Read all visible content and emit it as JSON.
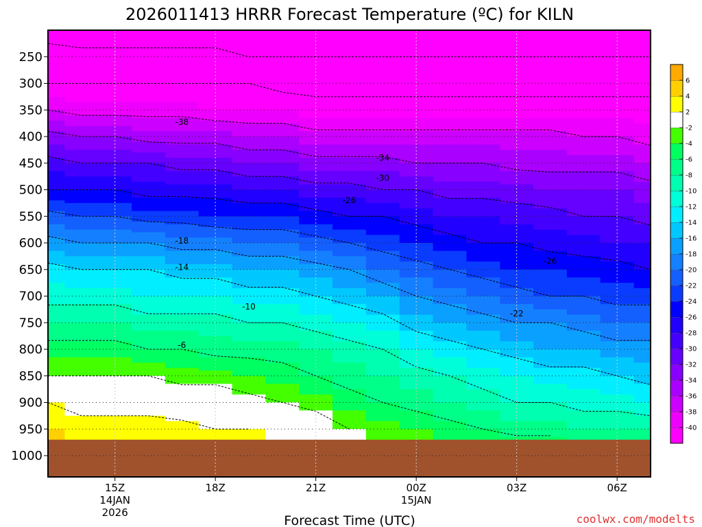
{
  "chart_data": {
    "type": "heatmap",
    "title": "2026011413 HRRR Forecast Temperature (ºC) for KILN",
    "xlabel": "Forecast Time (UTC)",
    "ylabel": "",
    "x_ticks": [
      {
        "hour": 15,
        "labels": [
          "15Z",
          "14JAN",
          "2026"
        ]
      },
      {
        "hour": 18,
        "labels": [
          "18Z"
        ]
      },
      {
        "hour": 21,
        "labels": [
          "21Z"
        ]
      },
      {
        "hour": 24,
        "labels": [
          "00Z",
          "15JAN"
        ]
      },
      {
        "hour": 27,
        "labels": [
          "03Z"
        ]
      },
      {
        "hour": 30,
        "labels": [
          "06Z"
        ]
      }
    ],
    "x_hours": [
      13,
      14,
      15,
      16,
      17,
      18,
      19,
      20,
      21,
      22,
      23,
      24,
      25,
      26,
      27,
      28,
      29,
      30,
      31
    ],
    "xlim": [
      13,
      31
    ],
    "pressure_ticks": [
      250,
      300,
      350,
      400,
      450,
      500,
      550,
      600,
      650,
      700,
      750,
      800,
      850,
      900,
      950,
      1000
    ],
    "ylim_hpa": [
      200,
      1040
    ],
    "ground_level_hpa": 970,
    "temperature_profiles": [
      {
        "p": [
          200,
          250,
          300,
          350,
          400,
          450,
          500,
          550,
          600,
          650,
          700,
          750,
          800,
          850,
          900,
          950,
          975
        ],
        "t": [
          -48,
          -44,
          -42,
          -38,
          -33,
          -29,
          -26,
          -21,
          -17,
          -13,
          -11,
          -8,
          -5,
          -2,
          2,
          4,
          5
        ]
      },
      {
        "p": [
          200,
          250,
          300,
          350,
          400,
          450,
          500,
          550,
          600,
          650,
          700,
          750,
          800,
          850,
          900,
          950,
          975
        ],
        "t": [
          -48,
          -45,
          -42,
          -39,
          -34,
          -30,
          -26,
          -22,
          -18,
          -14,
          -11,
          -8,
          -5,
          -2,
          1,
          3,
          4
        ]
      },
      {
        "p": [
          200,
          250,
          300,
          350,
          400,
          450,
          500,
          550,
          600,
          650,
          700,
          750,
          800,
          850,
          900,
          950,
          975
        ],
        "t": [
          -48,
          -45,
          -42,
          -39,
          -34,
          -30,
          -26,
          -22,
          -18,
          -14,
          -11,
          -8,
          -5,
          -2,
          1,
          3,
          4
        ]
      },
      {
        "p": [
          200,
          250,
          300,
          350,
          400,
          450,
          500,
          550,
          600,
          650,
          700,
          750,
          800,
          850,
          900,
          950,
          975
        ],
        "t": [
          -48,
          -45,
          -42,
          -39,
          -35,
          -30,
          -27,
          -23,
          -18,
          -14,
          -12,
          -9,
          -6,
          -2,
          1,
          3,
          4
        ]
      },
      {
        "p": [
          200,
          250,
          300,
          350,
          400,
          450,
          500,
          550,
          600,
          650,
          700,
          750,
          800,
          850,
          900,
          950,
          975
        ],
        "t": [
          -48,
          -45,
          -42,
          -39,
          -35,
          -31,
          -27,
          -23,
          -19,
          -15,
          -12,
          -9,
          -6,
          -3,
          0,
          3,
          4
        ]
      },
      {
        "p": [
          200,
          250,
          300,
          350,
          400,
          450,
          500,
          550,
          600,
          650,
          700,
          750,
          800,
          850,
          900,
          950,
          975
        ],
        "t": [
          -48,
          -45,
          -42,
          -40,
          -35,
          -31,
          -27,
          -24,
          -19,
          -15,
          -12,
          -9,
          -7,
          -3,
          0,
          2,
          3
        ]
      },
      {
        "p": [
          200,
          250,
          300,
          350,
          400,
          450,
          500,
          550,
          600,
          650,
          700,
          750,
          800,
          850,
          900,
          950,
          975
        ],
        "t": [
          -48,
          -46,
          -42,
          -40,
          -36,
          -32,
          -28,
          -24,
          -20,
          -16,
          -13,
          -10,
          -7,
          -4,
          -1,
          2,
          3
        ]
      },
      {
        "p": [
          200,
          250,
          300,
          350,
          400,
          450,
          500,
          550,
          600,
          650,
          700,
          750,
          800,
          850,
          900,
          950,
          975
        ],
        "t": [
          -48,
          -46,
          -43,
          -40,
          -36,
          -32,
          -28,
          -24,
          -20,
          -16,
          -13,
          -10,
          -7,
          -5,
          -2,
          1,
          2
        ]
      },
      {
        "p": [
          200,
          250,
          300,
          350,
          400,
          450,
          500,
          550,
          600,
          650,
          700,
          750,
          800,
          850,
          900,
          950,
          975
        ],
        "t": [
          -48,
          -46,
          -43,
          -41,
          -37,
          -33,
          -29,
          -25,
          -21,
          -17,
          -14,
          -11,
          -8,
          -6,
          -3,
          0,
          1
        ]
      },
      {
        "p": [
          200,
          250,
          300,
          350,
          400,
          450,
          500,
          550,
          600,
          650,
          700,
          750,
          800,
          850,
          900,
          950,
          975
        ],
        "t": [
          -48,
          -46,
          -43,
          -41,
          -37,
          -33,
          -29,
          -26,
          -22,
          -18,
          -15,
          -12,
          -9,
          -7,
          -5,
          -2,
          -1
        ]
      },
      {
        "p": [
          200,
          250,
          300,
          350,
          400,
          450,
          500,
          550,
          600,
          650,
          700,
          750,
          800,
          850,
          900,
          950,
          975
        ],
        "t": [
          -48,
          -46,
          -43,
          -41,
          -37,
          -33,
          -30,
          -26,
          -23,
          -20,
          -16,
          -13,
          -10,
          -8,
          -6,
          -3,
          -2
        ]
      },
      {
        "p": [
          200,
          250,
          300,
          350,
          400,
          450,
          500,
          550,
          600,
          650,
          700,
          750,
          800,
          850,
          900,
          950,
          975
        ],
        "t": [
          -48,
          -46,
          -43,
          -41,
          -37,
          -34,
          -30,
          -27,
          -24,
          -21,
          -18,
          -15,
          -12,
          -9,
          -7,
          -4,
          -3
        ]
      },
      {
        "p": [
          200,
          250,
          300,
          350,
          400,
          450,
          500,
          550,
          600,
          650,
          700,
          750,
          800,
          850,
          900,
          950,
          975
        ],
        "t": [
          -48,
          -46,
          -43,
          -41,
          -37,
          -34,
          -31,
          -28,
          -25,
          -22,
          -19,
          -16,
          -13,
          -10,
          -8,
          -5,
          -4
        ]
      },
      {
        "p": [
          200,
          250,
          300,
          350,
          400,
          450,
          500,
          550,
          600,
          650,
          700,
          750,
          800,
          850,
          900,
          950,
          975
        ],
        "t": [
          -48,
          -46,
          -43,
          -41,
          -37,
          -34,
          -31,
          -28,
          -26,
          -23,
          -20,
          -17,
          -14,
          -11,
          -9,
          -6,
          -4
        ]
      },
      {
        "p": [
          200,
          250,
          300,
          350,
          400,
          450,
          500,
          550,
          600,
          650,
          700,
          750,
          800,
          850,
          900,
          950,
          975
        ],
        "t": [
          -48,
          -46,
          -43,
          -41,
          -37,
          -35,
          -31,
          -29,
          -26,
          -24,
          -21,
          -18,
          -15,
          -12,
          -10,
          -7,
          -5
        ]
      },
      {
        "p": [
          200,
          250,
          300,
          350,
          400,
          450,
          500,
          550,
          600,
          650,
          700,
          750,
          800,
          850,
          900,
          950,
          975
        ],
        "t": [
          -48,
          -46,
          -43,
          -41,
          -37,
          -35,
          -32,
          -29,
          -27,
          -24,
          -22,
          -18,
          -16,
          -13,
          -10,
          -7,
          -5
        ]
      },
      {
        "p": [
          200,
          250,
          300,
          350,
          400,
          450,
          500,
          550,
          600,
          650,
          700,
          750,
          800,
          850,
          900,
          950,
          975
        ],
        "t": [
          -48,
          -46,
          -43,
          -41,
          -38,
          -35,
          -32,
          -30,
          -27,
          -25,
          -22,
          -19,
          -16,
          -13,
          -11,
          -8,
          -6
        ]
      },
      {
        "p": [
          200,
          250,
          300,
          350,
          400,
          450,
          500,
          550,
          600,
          650,
          700,
          750,
          800,
          850,
          900,
          950,
          975
        ],
        "t": [
          -48,
          -46,
          -43,
          -41,
          -38,
          -35,
          -32,
          -30,
          -28,
          -25,
          -23,
          -20,
          -17,
          -14,
          -11,
          -8,
          -6
        ]
      },
      {
        "p": [
          200,
          250,
          300,
          350,
          400,
          450,
          500,
          550,
          600,
          650,
          700,
          750,
          800,
          850,
          900,
          950,
          975
        ],
        "t": [
          -48,
          -46,
          -43,
          -41,
          -39,
          -36,
          -33,
          -31,
          -28,
          -26,
          -23,
          -20,
          -17,
          -15,
          -12,
          -8,
          -6
        ]
      }
    ],
    "contour_labels": [
      {
        "text": "-38",
        "hour": 17.0,
        "hpa": 373
      },
      {
        "text": "-34",
        "hour": 23.0,
        "hpa": 440
      },
      {
        "text": "-30",
        "hour": 23.0,
        "hpa": 478
      },
      {
        "text": "-26",
        "hour": 22.0,
        "hpa": 520
      },
      {
        "text": "-18",
        "hour": 17.0,
        "hpa": 596
      },
      {
        "text": "-14",
        "hour": 17.0,
        "hpa": 646
      },
      {
        "text": "-10",
        "hour": 19.0,
        "hpa": 720
      },
      {
        "text": "-6",
        "hour": 17.0,
        "hpa": 792
      },
      {
        "text": "-26",
        "hour": 28.0,
        "hpa": 634
      },
      {
        "text": "-22",
        "hour": 27.0,
        "hpa": 733
      }
    ],
    "colorbar_levels": [
      -40,
      -38,
      -36,
      -34,
      -32,
      -30,
      -28,
      -26,
      -24,
      -22,
      -20,
      -18,
      -16,
      -14,
      -12,
      -10,
      -8,
      -6,
      -4,
      -2,
      2,
      4,
      6
    ],
    "colorbar_colors": [
      "#ff00ff",
      "#ee00ff",
      "#cc00ff",
      "#aa00ff",
      "#8800ff",
      "#6600ff",
      "#4400ff",
      "#2200ff",
      "#0000ff",
      "#0a3cff",
      "#1460ff",
      "#1480ff",
      "#0aa0ff",
      "#00c8ff",
      "#00eeff",
      "#00ffd8",
      "#00ffb0",
      "#00ff88",
      "#00ff60",
      "#44ff00",
      "#ffffff",
      "#ffff00",
      "#ffd000",
      "#ffaa00"
    ],
    "ground_color": "#a0522d",
    "credit": "coolwx.com/modelts"
  }
}
